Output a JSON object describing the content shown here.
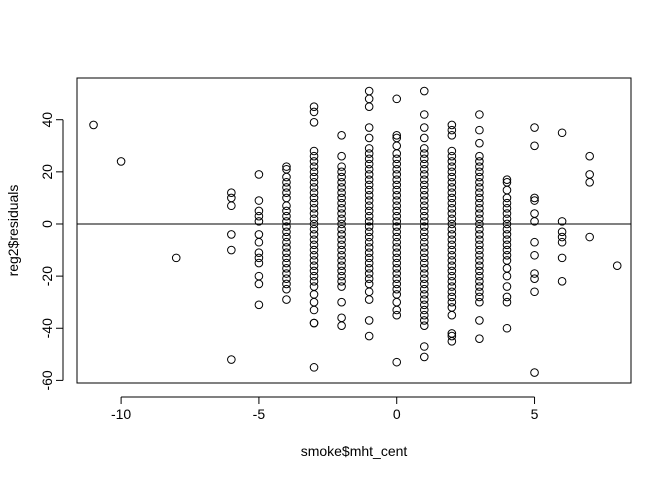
{
  "chart_data": {
    "type": "scatter",
    "title": "",
    "xlabel": "smoke$mht_cent",
    "ylabel": "reg2$residuals",
    "xlim": [
      -11.6,
      8.5
    ],
    "ylim": [
      -61,
      56
    ],
    "xticks": [
      -10,
      -5,
      0,
      5
    ],
    "yticks": [
      -60,
      -40,
      -20,
      0,
      20,
      40
    ],
    "reference_line": {
      "orientation": "horizontal",
      "y": 0
    },
    "grid": false,
    "legend": "none",
    "marker": "open-circle",
    "columns": [
      {
        "x": -11,
        "y": [
          38
        ]
      },
      {
        "x": -10,
        "y": [
          24
        ]
      },
      {
        "x": -8,
        "y": [
          -13
        ]
      },
      {
        "x": -6,
        "y": [
          12,
          10,
          7,
          -4,
          -10,
          -52
        ]
      },
      {
        "x": -5,
        "y": [
          19,
          9,
          5,
          3,
          1,
          -4,
          -7,
          -11,
          -13,
          -15,
          -20,
          -23,
          -31
        ]
      },
      {
        "x": -4,
        "y": [
          22,
          21,
          18,
          16,
          14,
          12,
          10,
          7,
          5,
          3,
          1,
          -1,
          -3,
          -5,
          -7,
          -9,
          -11,
          -13,
          -15,
          -17,
          -19,
          -21,
          -23,
          -25,
          -29
        ]
      },
      {
        "x": -3,
        "y": [
          45,
          43,
          39,
          28,
          26,
          24,
          22,
          20,
          18,
          16,
          14,
          12,
          10,
          8,
          6,
          4,
          2,
          0,
          -2,
          -4,
          -6,
          -8,
          -10,
          -12,
          -14,
          -16,
          -18,
          -20,
          -22,
          -24,
          -27,
          -30,
          -33,
          -38,
          -38,
          -55
        ]
      },
      {
        "x": -2,
        "y": [
          34,
          26,
          22,
          20,
          18,
          16,
          14,
          12,
          10,
          8,
          6,
          4,
          2,
          0,
          -2,
          -4,
          -6,
          -8,
          -10,
          -12,
          -14,
          -16,
          -18,
          -20,
          -22,
          -24,
          -30,
          -36,
          -39
        ]
      },
      {
        "x": -1,
        "y": [
          51,
          48,
          45,
          37,
          33,
          29,
          27,
          25,
          23,
          21,
          19,
          17,
          15,
          13,
          11,
          9,
          7,
          5,
          3,
          1,
          -1,
          -3,
          -5,
          -7,
          -9,
          -11,
          -13,
          -15,
          -17,
          -19,
          -21,
          -23,
          -26,
          -29,
          -37,
          -43
        ]
      },
      {
        "x": 0,
        "y": [
          48,
          34,
          33,
          30,
          27,
          25,
          23,
          21,
          19,
          17,
          15,
          13,
          11,
          9,
          7,
          5,
          3,
          1,
          -1,
          -3,
          -5,
          -7,
          -9,
          -11,
          -13,
          -15,
          -17,
          -19,
          -21,
          -23,
          -25,
          -27,
          -30,
          -33,
          -35,
          -53
        ]
      },
      {
        "x": 1,
        "y": [
          51,
          42,
          37,
          33,
          29,
          27,
          25,
          23,
          21,
          19,
          17,
          15,
          13,
          11,
          9,
          7,
          5,
          3,
          1,
          -1,
          -3,
          -5,
          -7,
          -9,
          -11,
          -13,
          -15,
          -17,
          -19,
          -21,
          -23,
          -25,
          -27,
          -29,
          -31,
          -33,
          -35,
          -37,
          -39,
          -47,
          -51
        ]
      },
      {
        "x": 2,
        "y": [
          38,
          36,
          34,
          28,
          26,
          24,
          22,
          20,
          18,
          16,
          14,
          12,
          10,
          8,
          6,
          4,
          2,
          0,
          -2,
          -4,
          -6,
          -8,
          -10,
          -12,
          -14,
          -16,
          -18,
          -20,
          -22,
          -24,
          -26,
          -28,
          -30,
          -32,
          -35,
          -42,
          -43,
          -45
        ]
      },
      {
        "x": 3,
        "y": [
          42,
          36,
          31,
          26,
          24,
          22,
          20,
          18,
          16,
          14,
          12,
          10,
          8,
          6,
          4,
          2,
          0,
          -2,
          -4,
          -6,
          -8,
          -10,
          -12,
          -14,
          -16,
          -18,
          -20,
          -22,
          -24,
          -26,
          -28,
          -30,
          -37,
          -44
        ]
      },
      {
        "x": 4,
        "y": [
          17,
          16,
          13,
          10,
          8,
          6,
          4,
          2,
          0,
          -2,
          -4,
          -6,
          -8,
          -10,
          -12,
          -14,
          -17,
          -20,
          -24,
          -28,
          -30,
          -40
        ]
      },
      {
        "x": 5,
        "y": [
          37,
          30,
          10,
          9,
          4,
          1,
          -7,
          -12,
          -19,
          -21,
          -26,
          -57
        ]
      },
      {
        "x": 6,
        "y": [
          35,
          1,
          -3,
          -5,
          -7,
          -13,
          -22
        ]
      },
      {
        "x": 7,
        "y": [
          26,
          19,
          16,
          -5
        ]
      },
      {
        "x": 8,
        "y": [
          -16
        ]
      }
    ]
  }
}
